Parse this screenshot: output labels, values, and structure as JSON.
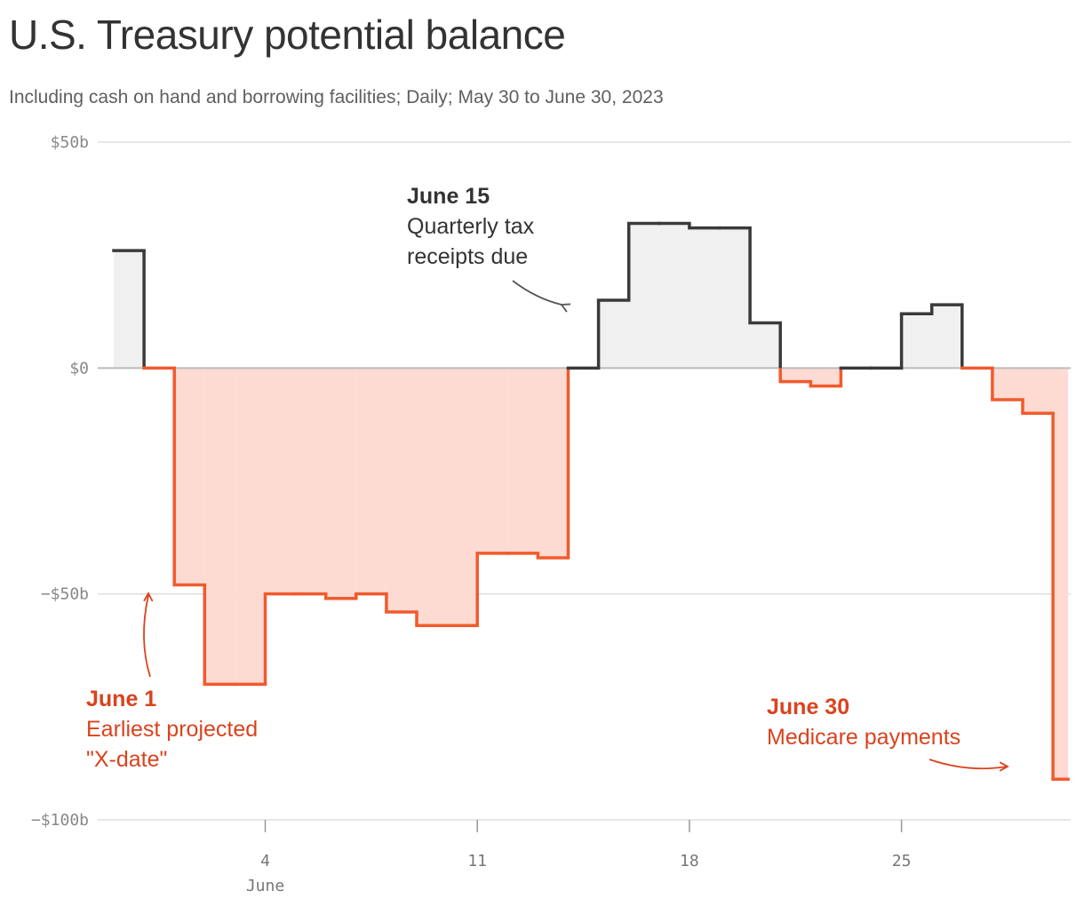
{
  "title": "U.S. Treasury potential balance",
  "subtitle": "Including cash on hand and borrowing facilities; Daily; May 30 to June 30, 2023",
  "colors": {
    "positive_line": "#3a3a3a",
    "positive_fill": "#f0f0f0",
    "negative_line": "#f25a2c",
    "negative_fill": "#fddbd3",
    "annotation_red": "#d9431e",
    "grid": "#dddddd",
    "zero_line": "#bbbbbb"
  },
  "chart_data": {
    "type": "area",
    "step": true,
    "x": [
      "2023-05-30",
      "2023-05-31",
      "2023-06-01",
      "2023-06-02",
      "2023-06-03",
      "2023-06-04",
      "2023-06-05",
      "2023-06-06",
      "2023-06-07",
      "2023-06-08",
      "2023-06-09",
      "2023-06-10",
      "2023-06-11",
      "2023-06-12",
      "2023-06-13",
      "2023-06-14",
      "2023-06-15",
      "2023-06-16",
      "2023-06-17",
      "2023-06-18",
      "2023-06-19",
      "2023-06-20",
      "2023-06-21",
      "2023-06-22",
      "2023-06-23",
      "2023-06-24",
      "2023-06-25",
      "2023-06-26",
      "2023-06-27",
      "2023-06-28",
      "2023-06-29",
      "2023-06-30"
    ],
    "values": [
      26,
      0,
      -48,
      -70,
      -70,
      -50,
      -50,
      -51,
      -50,
      -54,
      -57,
      -57,
      -41,
      -41,
      -42,
      0,
      15,
      32,
      32,
      31,
      31,
      10,
      -3,
      -4,
      0,
      0,
      12,
      14,
      0,
      -7,
      -10,
      -91
    ],
    "ylim": [
      -100,
      50
    ],
    "yticks": [
      50,
      0,
      -50,
      -100
    ],
    "ytick_labels": [
      "$50b",
      "$0",
      "−$50b",
      "−$100b"
    ],
    "xticks": [
      {
        "date": "2023-06-04",
        "label": "4"
      },
      {
        "date": "2023-06-11",
        "label": "11"
      },
      {
        "date": "2023-06-18",
        "label": "18"
      },
      {
        "date": "2023-06-25",
        "label": "25"
      }
    ],
    "x_sublabel": "June",
    "annotations": [
      {
        "date": "2023-06-15",
        "heading": "June 15",
        "lines": [
          "Quarterly tax",
          "receipts due"
        ],
        "tone": "dark"
      },
      {
        "date": "2023-06-01",
        "heading": "June 1",
        "lines": [
          "Earliest projected",
          "\"X-date\""
        ],
        "tone": "red"
      },
      {
        "date": "2023-06-30",
        "heading": "June 30",
        "lines": [
          "Medicare payments"
        ],
        "tone": "red"
      }
    ]
  }
}
